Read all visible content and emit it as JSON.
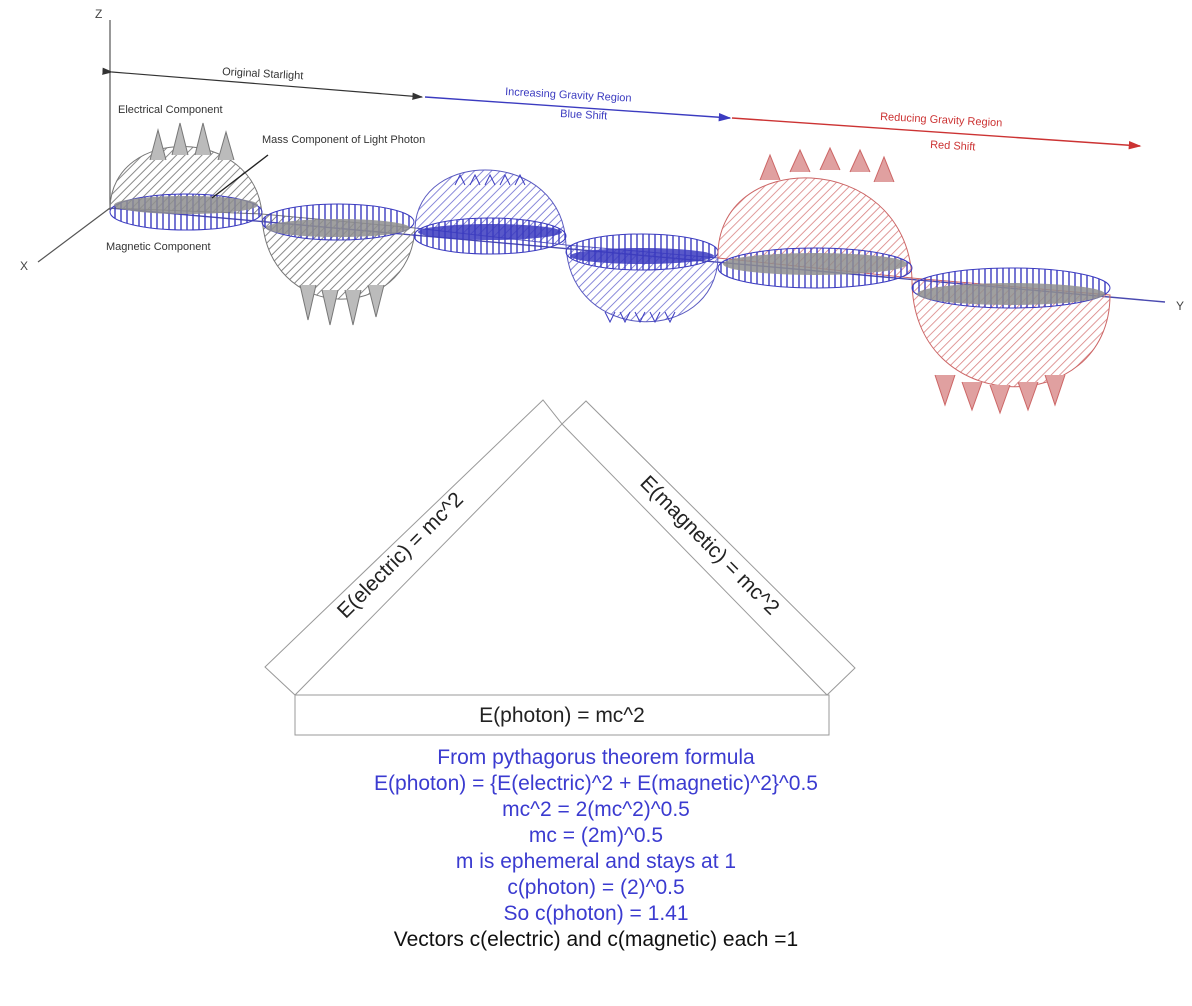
{
  "wave_diagram": {
    "axis_labels": {
      "z": "Z",
      "x": "X",
      "y": "Y"
    },
    "region_labels": {
      "original": "Original Starlight",
      "increasing_title": "Increasing Gravity Region",
      "increasing_sub": "Blue Shift",
      "reducing_title": "Reducing Gravity Region",
      "reducing_sub": "Red Shift"
    },
    "component_labels": {
      "electrical": "Electrical Component",
      "mass": "Mass Component of Light Photon",
      "magnetic": "Magnetic Component"
    },
    "colors": {
      "original": "#555555",
      "blue_shift": "#3b3bc0",
      "red_shift": "#cc3333",
      "red_fill": "#f2b8b8",
      "blue_fill": "#b8b8ea",
      "gray_fill": "#bdbdbd"
    }
  },
  "triangle": {
    "left_side": "E(electric) = mc^2",
    "right_side": "E(magnetic) = mc^2",
    "base": "E(photon) = mc^2"
  },
  "formulas": [
    "From pythagorus theorem formula",
    "E(photon) = {E(electric)^2 + E(magnetic)^2}^0.5",
    "mc^2 = 2(mc^2)^0.5",
    "mc = (2m)^0.5",
    "m is ephemeral and stays at 1",
    "c(photon) = (2)^0.5",
    "So c(photon) = 1.41",
    "Vectors c(electric) and c(magnetic) each =1"
  ]
}
